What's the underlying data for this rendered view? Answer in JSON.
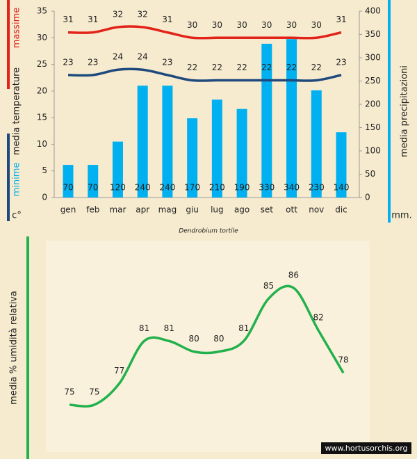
{
  "chart_data": [
    {
      "type": "bar",
      "categories": [
        "gen",
        "feb",
        "mar",
        "apr",
        "mag",
        "giu",
        "lug",
        "ago",
        "set",
        "ott",
        "nov",
        "dic"
      ],
      "ylabel": "media  temperature",
      "yunit": "c°",
      "y2label": "media  precipitazioni",
      "y2unit": "mm.",
      "caption": "Dendrobium tortile",
      "ylim": [
        0,
        35
      ],
      "yticks": [
        0,
        5,
        10,
        15,
        20,
        25,
        30,
        35
      ],
      "y2lim": [
        0,
        400
      ],
      "y2ticks": [
        0,
        50,
        100,
        150,
        200,
        250,
        300,
        350,
        400
      ],
      "grid": false,
      "series": [
        {
          "name": "massime",
          "type": "line",
          "color": "#e2231a",
          "values": [
            31,
            31,
            32,
            32,
            31,
            30,
            30,
            30,
            30,
            30,
            30,
            31
          ]
        },
        {
          "name": "minime",
          "type": "line",
          "color": "#1f497d",
          "values": [
            23,
            23,
            24,
            24,
            23,
            22,
            22,
            22,
            22,
            22,
            22,
            23
          ]
        },
        {
          "type": "bar",
          "axis": "y2",
          "color": "#00b0f0",
          "values": [
            70,
            70,
            120,
            240,
            240,
            170,
            210,
            190,
            330,
            340,
            230,
            140
          ]
        }
      ]
    },
    {
      "type": "line",
      "ylabel": "media %  umidità relativa",
      "color": "#22b14c",
      "values": [
        75,
        75,
        77,
        81,
        81,
        80,
        80,
        81,
        85,
        86,
        82,
        78
      ],
      "source": "www.hortusorchis.org"
    }
  ]
}
